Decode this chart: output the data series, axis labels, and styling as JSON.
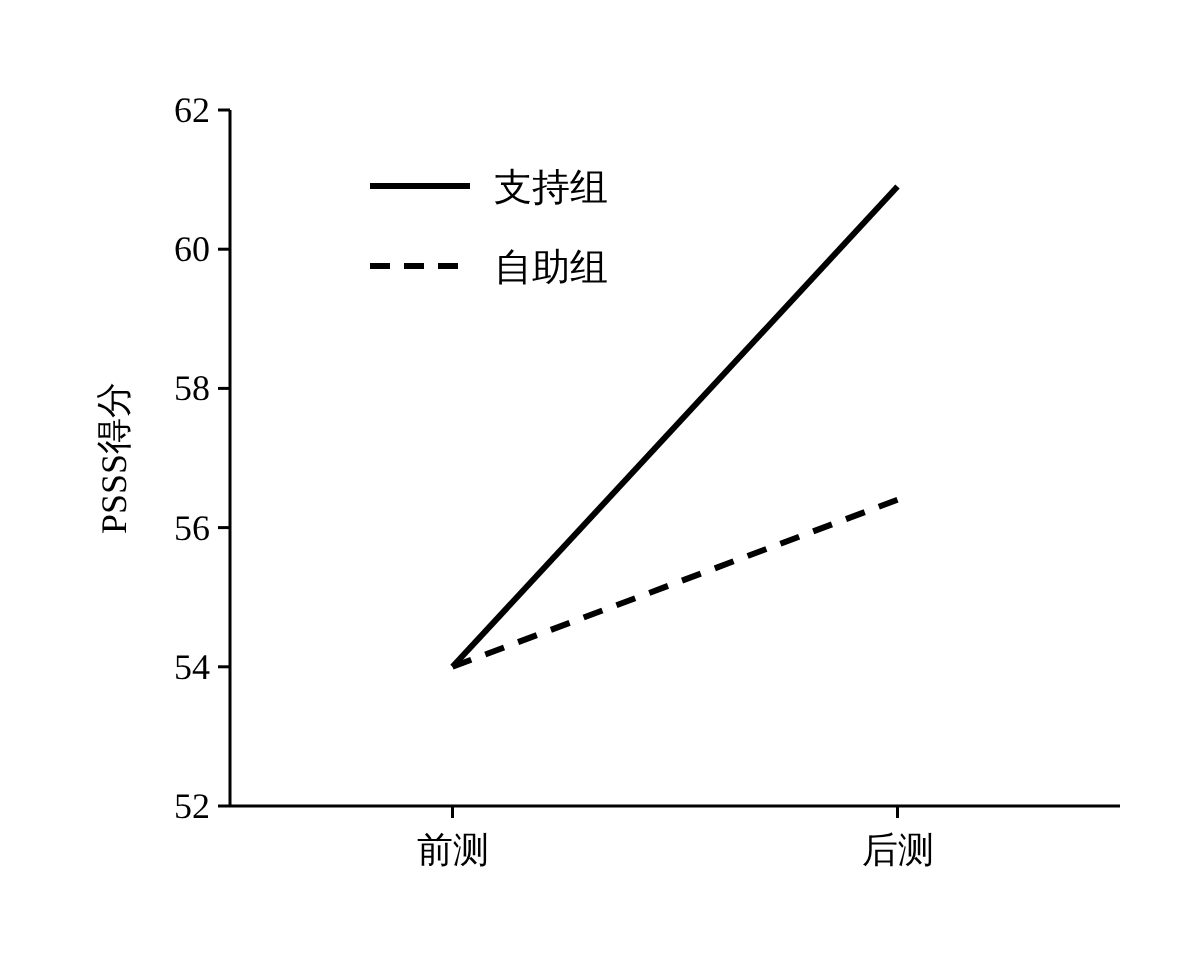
{
  "chart_data": {
    "type": "line",
    "ylabel": "PSSS得分",
    "categories": [
      "前测",
      "后测"
    ],
    "series": [
      {
        "name": "支持组",
        "color": "#000000",
        "line_style": "solid",
        "values": [
          54,
          60.9
        ]
      },
      {
        "name": "自助组",
        "color": "#000000",
        "line_style": "dashed",
        "values": [
          54,
          56.4
        ]
      }
    ],
    "ylim": [
      52,
      62
    ],
    "yticks": [
      52,
      54,
      56,
      58,
      60,
      62
    ],
    "grid": false,
    "legend": "top left",
    "marker": "none"
  }
}
